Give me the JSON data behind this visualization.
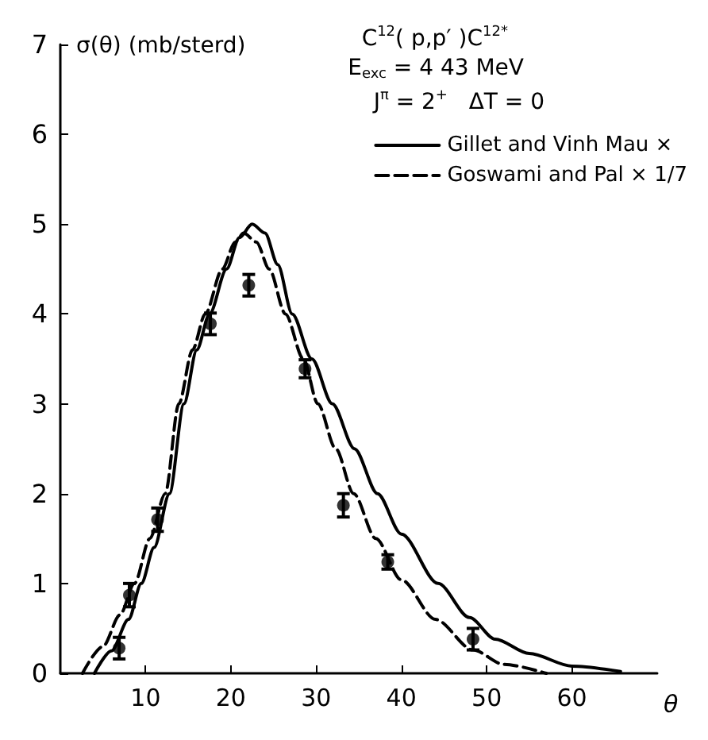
{
  "chart_data": {
    "type": "line",
    "xlabel": "θ",
    "ylabel": "σ(θ) (mb/sterd)",
    "annotations": [
      "C$^{12}$( p,p′ )C$^{12*}$",
      "E$_{exc}$ = 4 43 MeV",
      "J$^{π}$ = 2$^{+}$   ΔT = 0"
    ],
    "xlim": [
      0,
      70
    ],
    "xticks": [
      10,
      20,
      30,
      40,
      50,
      60
    ],
    "ylim": [
      0,
      7
    ],
    "yticks": [
      0,
      1,
      2,
      3,
      4,
      5,
      6,
      7
    ],
    "grid": false,
    "legend": "top right",
    "series": [
      {
        "name": "Gillet and Vinh Mau ×",
        "color": "#000000",
        "line_style": "solid",
        "marker": "none",
        "x": [
          4,
          6,
          8,
          9.5,
          11,
          12.8,
          14.5,
          16,
          17.5,
          19.5,
          21,
          22.5,
          24,
          25.5,
          27.2,
          29.5,
          31.9,
          34.5,
          37.2,
          40,
          44.3,
          48,
          51,
          55,
          60,
          65.7
        ],
        "values": [
          0,
          0.25,
          0.6,
          1.0,
          1.4,
          2.0,
          3.0,
          3.6,
          4.0,
          4.5,
          4.85,
          5.0,
          4.9,
          4.55,
          4.0,
          3.5,
          3.0,
          2.5,
          2.0,
          1.55,
          1.0,
          0.62,
          0.38,
          0.22,
          0.08,
          0.02
        ]
      },
      {
        "name": "Goswami and Pal × 1/7",
        "color": "#000000",
        "line_style": "dashed",
        "marker": "none",
        "x": [
          2.6,
          5,
          7,
          8.7,
          10.5,
          12.3,
          13.9,
          15.5,
          17,
          19,
          20.5,
          21.5,
          23,
          24.5,
          26.4,
          28.5,
          30.2,
          32.3,
          34.4,
          37,
          40,
          44,
          48.4,
          52,
          57
        ],
        "values": [
          0,
          0.3,
          0.65,
          1.0,
          1.5,
          2.0,
          3.0,
          3.6,
          4.0,
          4.5,
          4.8,
          4.9,
          4.8,
          4.5,
          4.0,
          3.5,
          3.0,
          2.5,
          2.0,
          1.5,
          1.04,
          0.6,
          0.26,
          0.1,
          0
        ]
      },
      {
        "type": "scatter",
        "color": "#000000",
        "marker": "circle",
        "x": [
          6.9,
          8.1,
          11.4,
          17.6,
          22.1,
          28.7,
          33.2,
          38.4,
          48.4
        ],
        "values": [
          0.28,
          0.87,
          1.71,
          3.89,
          4.32,
          3.39,
          1.87,
          1.24,
          0.38
        ],
        "errors": [
          0.12,
          0.13,
          0.13,
          0.12,
          0.12,
          0.1,
          0.13,
          0.08,
          0.12
        ]
      }
    ]
  }
}
